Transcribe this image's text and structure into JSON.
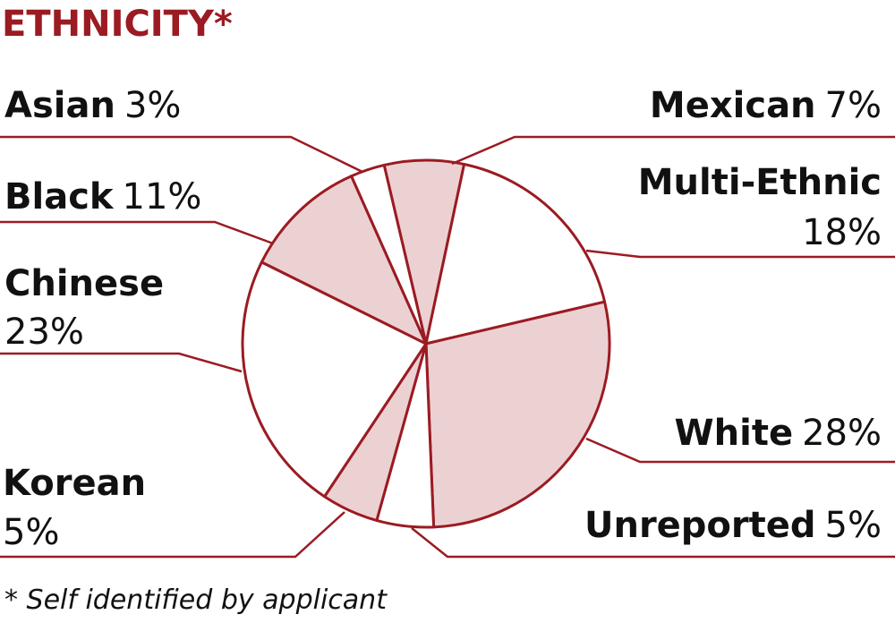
{
  "chart_data": {
    "type": "pie",
    "title": "ETHNICITY*",
    "footnote": "* Self identified by applicant",
    "categories": [
      "Mexican",
      "Multi-Ethnic",
      "White",
      "Unreported",
      "Korean",
      "Chinese",
      "Black",
      "Asian"
    ],
    "values": [
      7,
      18,
      28,
      5,
      5,
      23,
      11,
      3
    ],
    "value_labels": [
      "7%",
      "18%",
      "28%",
      "5%",
      "5%",
      "23%",
      "11%",
      "3%"
    ],
    "colors": [
      "#ecd1d3",
      "#ffffff",
      "#ecd1d3",
      "#ffffff",
      "#ecd1d3",
      "#ffffff",
      "#ecd1d3",
      "#ffffff"
    ],
    "stroke_color": "#9b1b22"
  }
}
